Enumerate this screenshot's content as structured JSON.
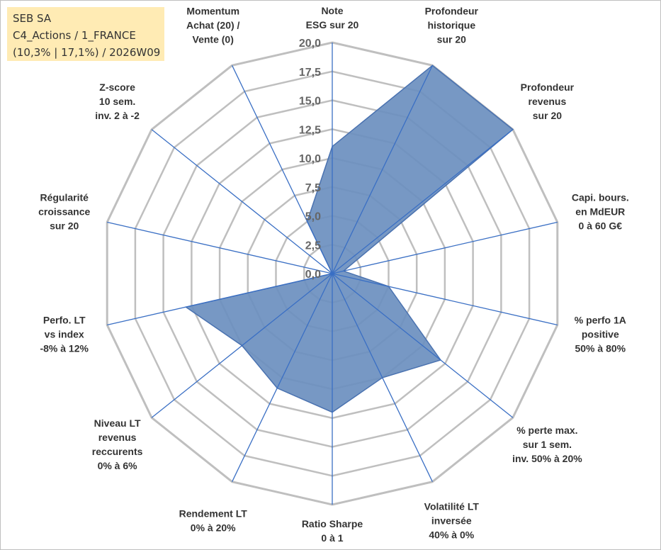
{
  "info_box": {
    "line1": "SEB SA",
    "line2": "C4_Actions / 1_FRANCE",
    "line3": "(10,3% | 17,1%) / 2026W09"
  },
  "colors": {
    "series_fill": "#6b8fbf",
    "series_stroke": "#4a72b0",
    "spoke": "#3a6fc4",
    "grid": "#bfbfbf",
    "info_bg": "#ffebb4"
  },
  "chart_data": {
    "type": "radar",
    "rmax": 20,
    "ticks": [
      "0,0",
      "2,5",
      "5,0",
      "7,5",
      "10,0",
      "12,5",
      "15,0",
      "17,5",
      "20,0"
    ],
    "axes": [
      {
        "label": [
          "Note",
          "ESG sur 20"
        ],
        "value": 11
      },
      {
        "label": [
          "Profondeur",
          "historique",
          "sur 20"
        ],
        "value": 20
      },
      {
        "label": [
          "Profondeur",
          "revenus",
          "sur 20"
        ],
        "value": 20
      },
      {
        "label": [
          "Capi. bours.",
          "en MdEUR",
          "0 à 60 G€"
        ],
        "value": 1
      },
      {
        "label": [
          "% perfo 1A",
          "positive",
          "50% à 80%"
        ],
        "value": 5
      },
      {
        "label": [
          "% perte max.",
          "sur 1 sem.",
          "inv. 50% à 20%"
        ],
        "value": 12
      },
      {
        "label": [
          "Volatilité LT",
          "inversée",
          "40% à 0%"
        ],
        "value": 10
      },
      {
        "label": [
          "Ratio Sharpe",
          "0 à 1"
        ],
        "value": 12
      },
      {
        "label": [
          "Rendement LT",
          "0% à 20%"
        ],
        "value": 11
      },
      {
        "label": [
          "Niveau LT",
          "revenus",
          "reccurents",
          "0% à 6%"
        ],
        "value": 10
      },
      {
        "label": [
          "Perfo. LT",
          "vs index",
          "-8% à 12%"
        ],
        "value": 13
      },
      {
        "label": [
          "Régularité",
          "croissance",
          "sur 20"
        ],
        "value": 0
      },
      {
        "label": [
          "Z-score",
          "10 sem.",
          "inv. 2 à -2"
        ],
        "value": 0
      },
      {
        "label": [
          "Momentum",
          "Achat (20) /",
          "Vente (0)"
        ],
        "value": 5
      }
    ]
  }
}
